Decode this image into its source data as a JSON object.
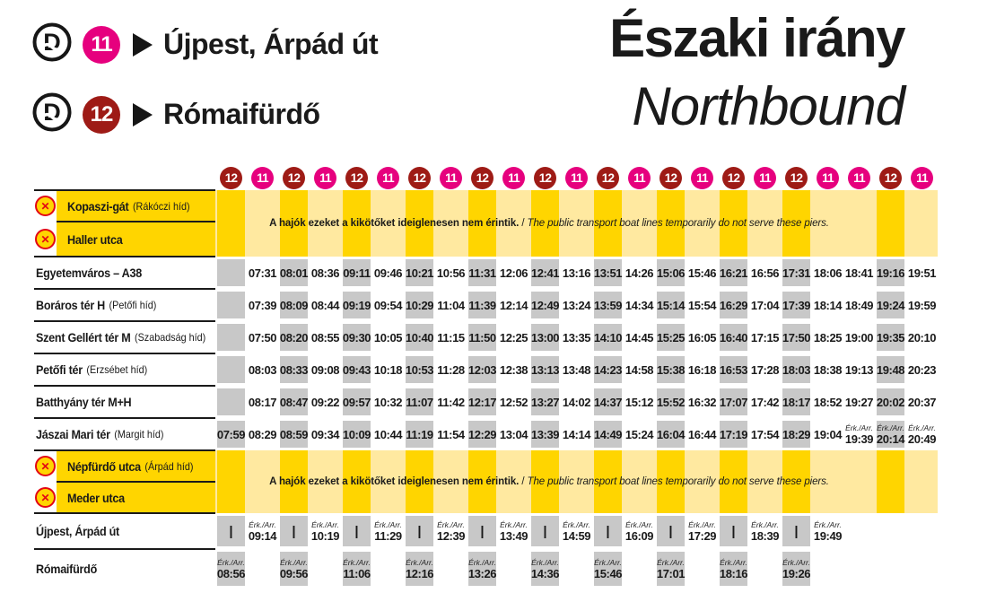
{
  "header": {
    "lines": [
      {
        "number": "11",
        "color": "#E6007E",
        "destination": "Újpest, Árpád út"
      },
      {
        "number": "12",
        "color": "#9E1B16",
        "destination": "Rómaifürdő"
      }
    ],
    "title_hu": "Északi irány",
    "title_en": "Northbound"
  },
  "colors": {
    "pink": "#E6007E",
    "dark_red": "#9E1B16",
    "yellow": "#FFD500",
    "pale_yellow": "#FFE9A0",
    "grey_cell": "#C8C8C8",
    "closed_red": "#E30613",
    "text": "#1A1A1A"
  },
  "notice": {
    "text_hu": "A hajók ezeket a kikötőket ideiglenesen nem érintik.",
    "separator": " / ",
    "text_en": "The public transport boat lines temporarily do not serve these piers."
  },
  "arrival_label": "Érk./Arr.",
  "skip_symbol": "|",
  "columns": [
    "12",
    "11",
    "12",
    "11",
    "12",
    "11",
    "12",
    "11",
    "12",
    "11",
    "12",
    "11",
    "12",
    "11",
    "12",
    "11",
    "12",
    "11",
    "12",
    "11",
    "11",
    "12",
    "11"
  ],
  "stations": [
    {
      "name": "Kopaszi-gát",
      "detail": "(Rákóczi híd)",
      "closed": true
    },
    {
      "name": "Haller utca",
      "detail": "",
      "closed": true
    },
    {
      "name": "Egyetemváros – A38",
      "detail": "",
      "cells": [
        "",
        "07:31",
        "08:01",
        "08:36",
        "09:11",
        "09:46",
        "10:21",
        "10:56",
        "11:31",
        "12:06",
        "12:41",
        "13:16",
        "13:51",
        "14:26",
        "15:06",
        "15:46",
        "16:21",
        "16:56",
        "17:31",
        "18:06",
        "18:41",
        "19:16",
        "19:51"
      ]
    },
    {
      "name": "Boráros tér H",
      "detail": "(Petőfi híd)",
      "cells": [
        "",
        "07:39",
        "08:09",
        "08:44",
        "09:19",
        "09:54",
        "10:29",
        "11:04",
        "11:39",
        "12:14",
        "12:49",
        "13:24",
        "13:59",
        "14:34",
        "15:14",
        "15:54",
        "16:29",
        "17:04",
        "17:39",
        "18:14",
        "18:49",
        "19:24",
        "19:59"
      ]
    },
    {
      "name": "Szent Gellért tér M",
      "detail": "(Szabadság híd)",
      "cells": [
        "",
        "07:50",
        "08:20",
        "08:55",
        "09:30",
        "10:05",
        "10:40",
        "11:15",
        "11:50",
        "12:25",
        "13:00",
        "13:35",
        "14:10",
        "14:45",
        "15:25",
        "16:05",
        "16:40",
        "17:15",
        "17:50",
        "18:25",
        "19:00",
        "19:35",
        "20:10"
      ]
    },
    {
      "name": "Petőfi tér",
      "detail": "(Erzsébet híd)",
      "cells": [
        "",
        "08:03",
        "08:33",
        "09:08",
        "09:43",
        "10:18",
        "10:53",
        "11:28",
        "12:03",
        "12:38",
        "13:13",
        "13:48",
        "14:23",
        "14:58",
        "15:38",
        "16:18",
        "16:53",
        "17:28",
        "18:03",
        "18:38",
        "19:13",
        "19:48",
        "20:23"
      ]
    },
    {
      "name": "Batthyány tér M+H",
      "detail": "",
      "cells": [
        "",
        "08:17",
        "08:47",
        "09:22",
        "09:57",
        "10:32",
        "11:07",
        "11:42",
        "12:17",
        "12:52",
        "13:27",
        "14:02",
        "14:37",
        "15:12",
        "15:52",
        "16:32",
        "17:07",
        "17:42",
        "18:17",
        "18:52",
        "19:27",
        "20:02",
        "20:37"
      ]
    },
    {
      "name": "Jászai Mari tér",
      "detail": "(Margit híd)",
      "cells": [
        "07:59",
        "08:29",
        "08:59",
        "09:34",
        "10:09",
        "10:44",
        "11:19",
        "11:54",
        "12:29",
        "13:04",
        "13:39",
        "14:14",
        "14:49",
        "15:24",
        "16:04",
        "16:44",
        "17:19",
        "17:54",
        "18:29",
        "19:04",
        "A|19:39",
        "A|20:14",
        "A|20:49"
      ]
    },
    {
      "name": "Népfürdő utca",
      "detail": "(Árpád híd)",
      "closed": true
    },
    {
      "name": "Meder utca",
      "detail": "",
      "closed": true
    },
    {
      "name": "Újpest, Árpád út",
      "detail": "",
      "cells": [
        "|",
        "A|09:14",
        "|",
        "A|10:19",
        "|",
        "A|11:29",
        "|",
        "A|12:39",
        "|",
        "A|13:49",
        "|",
        "A|14:59",
        "|",
        "A|16:09",
        "|",
        "A|17:29",
        "|",
        "A|18:39",
        "|",
        "A|19:49",
        null,
        null,
        null
      ]
    },
    {
      "name": "Rómaifürdő",
      "detail": "",
      "cells": [
        "A|08:56",
        "",
        "A|09:56",
        "",
        "A|11:06",
        "",
        "A|12:16",
        "",
        "A|13:26",
        "",
        "A|14:36",
        "",
        "A|15:46",
        "",
        "A|17:01",
        "",
        "A|18:16",
        "",
        "A|19:26",
        null,
        null,
        null,
        null
      ]
    }
  ]
}
